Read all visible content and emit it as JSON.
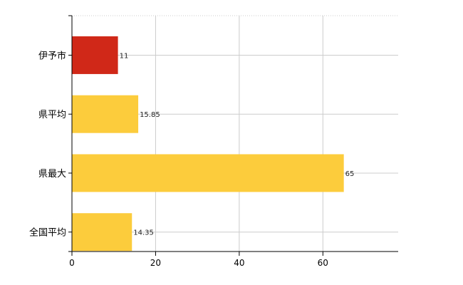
{
  "chart_data": {
    "type": "bar",
    "orientation": "horizontal",
    "categories": [
      "伊予市",
      "県平均",
      "県最大",
      "全国平均"
    ],
    "values": [
      11,
      15.85,
      65,
      14.35
    ],
    "value_labels": [
      "11",
      "15.85",
      "65",
      "14.35"
    ],
    "bar_colors": [
      "#d02818",
      "#fccc3c",
      "#fccc3c",
      "#fccc3c"
    ],
    "xlim": [
      0,
      78
    ],
    "xticks": [
      0,
      20,
      40,
      60
    ],
    "xtick_labels": [
      "0",
      "20",
      "40",
      "60"
    ],
    "grid": true
  }
}
